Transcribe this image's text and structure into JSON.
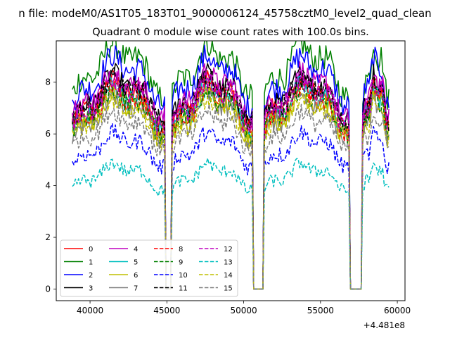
{
  "chart_data": {
    "type": "line",
    "suptitle": "n file: modeM0/AS1T05_183T01_9000006124_45758cztM0_level2_quad_clean",
    "title": "Quadrant 0 module wise count rates with 100.0s bins.",
    "xlabel": "",
    "ylabel": "",
    "x_offset_label": "+4.481e8",
    "xlim": [
      37800,
      60500
    ],
    "ylim": [
      -0.45,
      9.6
    ],
    "xticks": [
      40000,
      45000,
      50000,
      55000,
      60000
    ],
    "xtick_labels": [
      "40000",
      "45000",
      "50000",
      "55000",
      "60000"
    ],
    "yticks": [
      0,
      2,
      4,
      6,
      8
    ],
    "ytick_labels": [
      "0",
      "2",
      "4",
      "6",
      "8"
    ],
    "grid": false,
    "legend_position": "lower-left",
    "legend_columns": 4,
    "x_range": [
      38850,
      59450
    ],
    "bin_seconds": 100,
    "gaps": [
      [
        44900,
        45350
      ],
      [
        50600,
        51300
      ],
      [
        56900,
        57750
      ]
    ],
    "series": [
      {
        "name": "0",
        "color": "#ff0000",
        "dashed": false,
        "mean": 6.8
      },
      {
        "name": "1",
        "color": "#008000",
        "dashed": false,
        "mean": 8.0
      },
      {
        "name": "2",
        "color": "#0000ff",
        "dashed": false,
        "mean": 7.6
      },
      {
        "name": "3",
        "color": "#000000",
        "dashed": false,
        "mean": 7.0
      },
      {
        "name": "4",
        "color": "#bf00bf",
        "dashed": false,
        "mean": 7.1
      },
      {
        "name": "5",
        "color": "#00bfbf",
        "dashed": false,
        "mean": 6.6
      },
      {
        "name": "6",
        "color": "#bfbf00",
        "dashed": false,
        "mean": 6.4
      },
      {
        "name": "7",
        "color": "#808080",
        "dashed": false,
        "mean": 6.3
      },
      {
        "name": "8",
        "color": "#ff0000",
        "dashed": true,
        "mean": 6.6
      },
      {
        "name": "9",
        "color": "#008000",
        "dashed": true,
        "mean": 6.5
      },
      {
        "name": "10",
        "color": "#0000ff",
        "dashed": true,
        "mean": 5.1
      },
      {
        "name": "11",
        "color": "#000000",
        "dashed": true,
        "mean": 6.9
      },
      {
        "name": "12",
        "color": "#bf00bf",
        "dashed": true,
        "mean": 6.8
      },
      {
        "name": "13",
        "color": "#00bfbf",
        "dashed": true,
        "mean": 4.1
      },
      {
        "name": "14",
        "color": "#bfbf00",
        "dashed": true,
        "mean": 6.2
      },
      {
        "name": "15",
        "color": "#808080",
        "dashed": true,
        "mean": 5.8
      }
    ]
  }
}
